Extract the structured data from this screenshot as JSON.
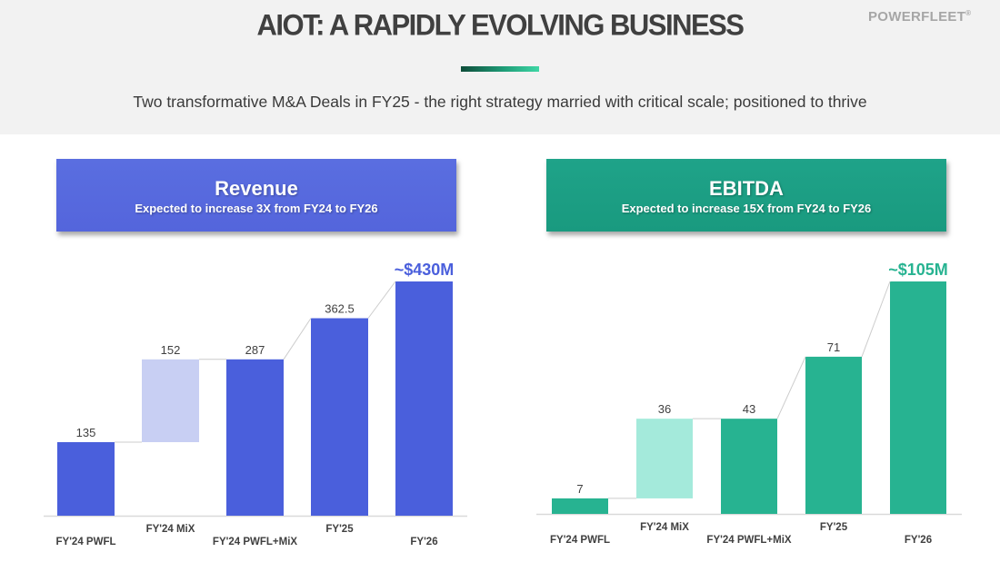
{
  "header": {
    "title": "AIOT: A RAPIDLY EVOLVING BUSINESS",
    "logo": "POWERFLEET",
    "subtitle": "Two transformative M&A Deals in FY25 - the right strategy married with critical scale; positioned to thrive"
  },
  "colors": {
    "revenue_primary": "#4a5fdc",
    "revenue_light": "#c8cff3",
    "revenue_card": "#5569dd",
    "ebitda_primary": "#27b391",
    "ebitda_light": "#a4eadb",
    "ebitda_card": "#1ca084",
    "connector": "#cccccc",
    "axis": "#d9d9d9"
  },
  "cards": {
    "revenue": {
      "title": "Revenue",
      "subtitle": "Expected to increase 3X from FY24 to FY26"
    },
    "ebitda": {
      "title": "EBITDA",
      "subtitle": "Expected to increase 15X from FY24 to FY26"
    }
  },
  "chart_data": [
    {
      "type": "bar",
      "subtype": "waterfall",
      "title": "Revenue",
      "categories": [
        "FY'24 PWFL",
        "FY'24 MiX",
        "FY'24 PWFL+MiX",
        "FY'25",
        "FY'26"
      ],
      "values": [
        135,
        152,
        287,
        362.5,
        430
      ],
      "bar_kind": [
        "total",
        "increment",
        "total",
        "total",
        "total"
      ],
      "labels": [
        "135",
        "152",
        "287",
        "362.5",
        "~$430M"
      ],
      "highlight_label_index": 4,
      "ylim": [
        0,
        430
      ],
      "grid": false,
      "xlabel": "",
      "ylabel": ""
    },
    {
      "type": "bar",
      "subtype": "waterfall",
      "title": "EBITDA",
      "categories": [
        "FY'24 PWFL",
        "FY'24 MiX",
        "FY'24 PWFL+MiX",
        "FY'25",
        "FY'26"
      ],
      "values": [
        7,
        36,
        43,
        71,
        105
      ],
      "bar_kind": [
        "total",
        "increment",
        "total",
        "total",
        "total"
      ],
      "labels": [
        "7",
        "36",
        "43",
        "71",
        "~$105M"
      ],
      "highlight_label_index": 4,
      "ylim": [
        0,
        105
      ],
      "grid": false,
      "xlabel": "",
      "ylabel": ""
    }
  ]
}
